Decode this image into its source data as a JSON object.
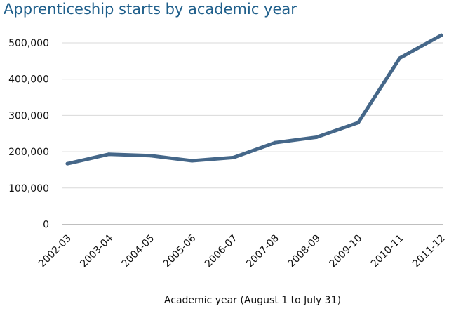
{
  "chart_data": {
    "type": "line",
    "title": "Apprenticeship starts by academic year",
    "xlabel": "Academic year (August 1 to July 31)",
    "ylabel": "",
    "categories": [
      "2002-03",
      "2003-04",
      "2004-05",
      "2005-06",
      "2006-07",
      "2007-08",
      "2008-09",
      "2009-10",
      "2010-11",
      "2011-12"
    ],
    "series": [
      {
        "values": [
          167000,
          193000,
          189000,
          175000,
          184000,
          225000,
          240000,
          280000,
          458000,
          521000
        ],
        "color": "#456789"
      }
    ],
    "yticks": [
      0,
      100000,
      200000,
      300000,
      400000,
      500000
    ],
    "ytick_labels": [
      "0",
      "100,000",
      "200,000",
      "300,000",
      "400,000",
      "500,000"
    ],
    "ylim": [
      0,
      520000
    ],
    "grid": "horizontal",
    "legend": "none",
    "colors": {
      "title": "#1f5f8b",
      "line": "#456789",
      "grid": "#d9d9d9",
      "text": "#111111"
    }
  }
}
